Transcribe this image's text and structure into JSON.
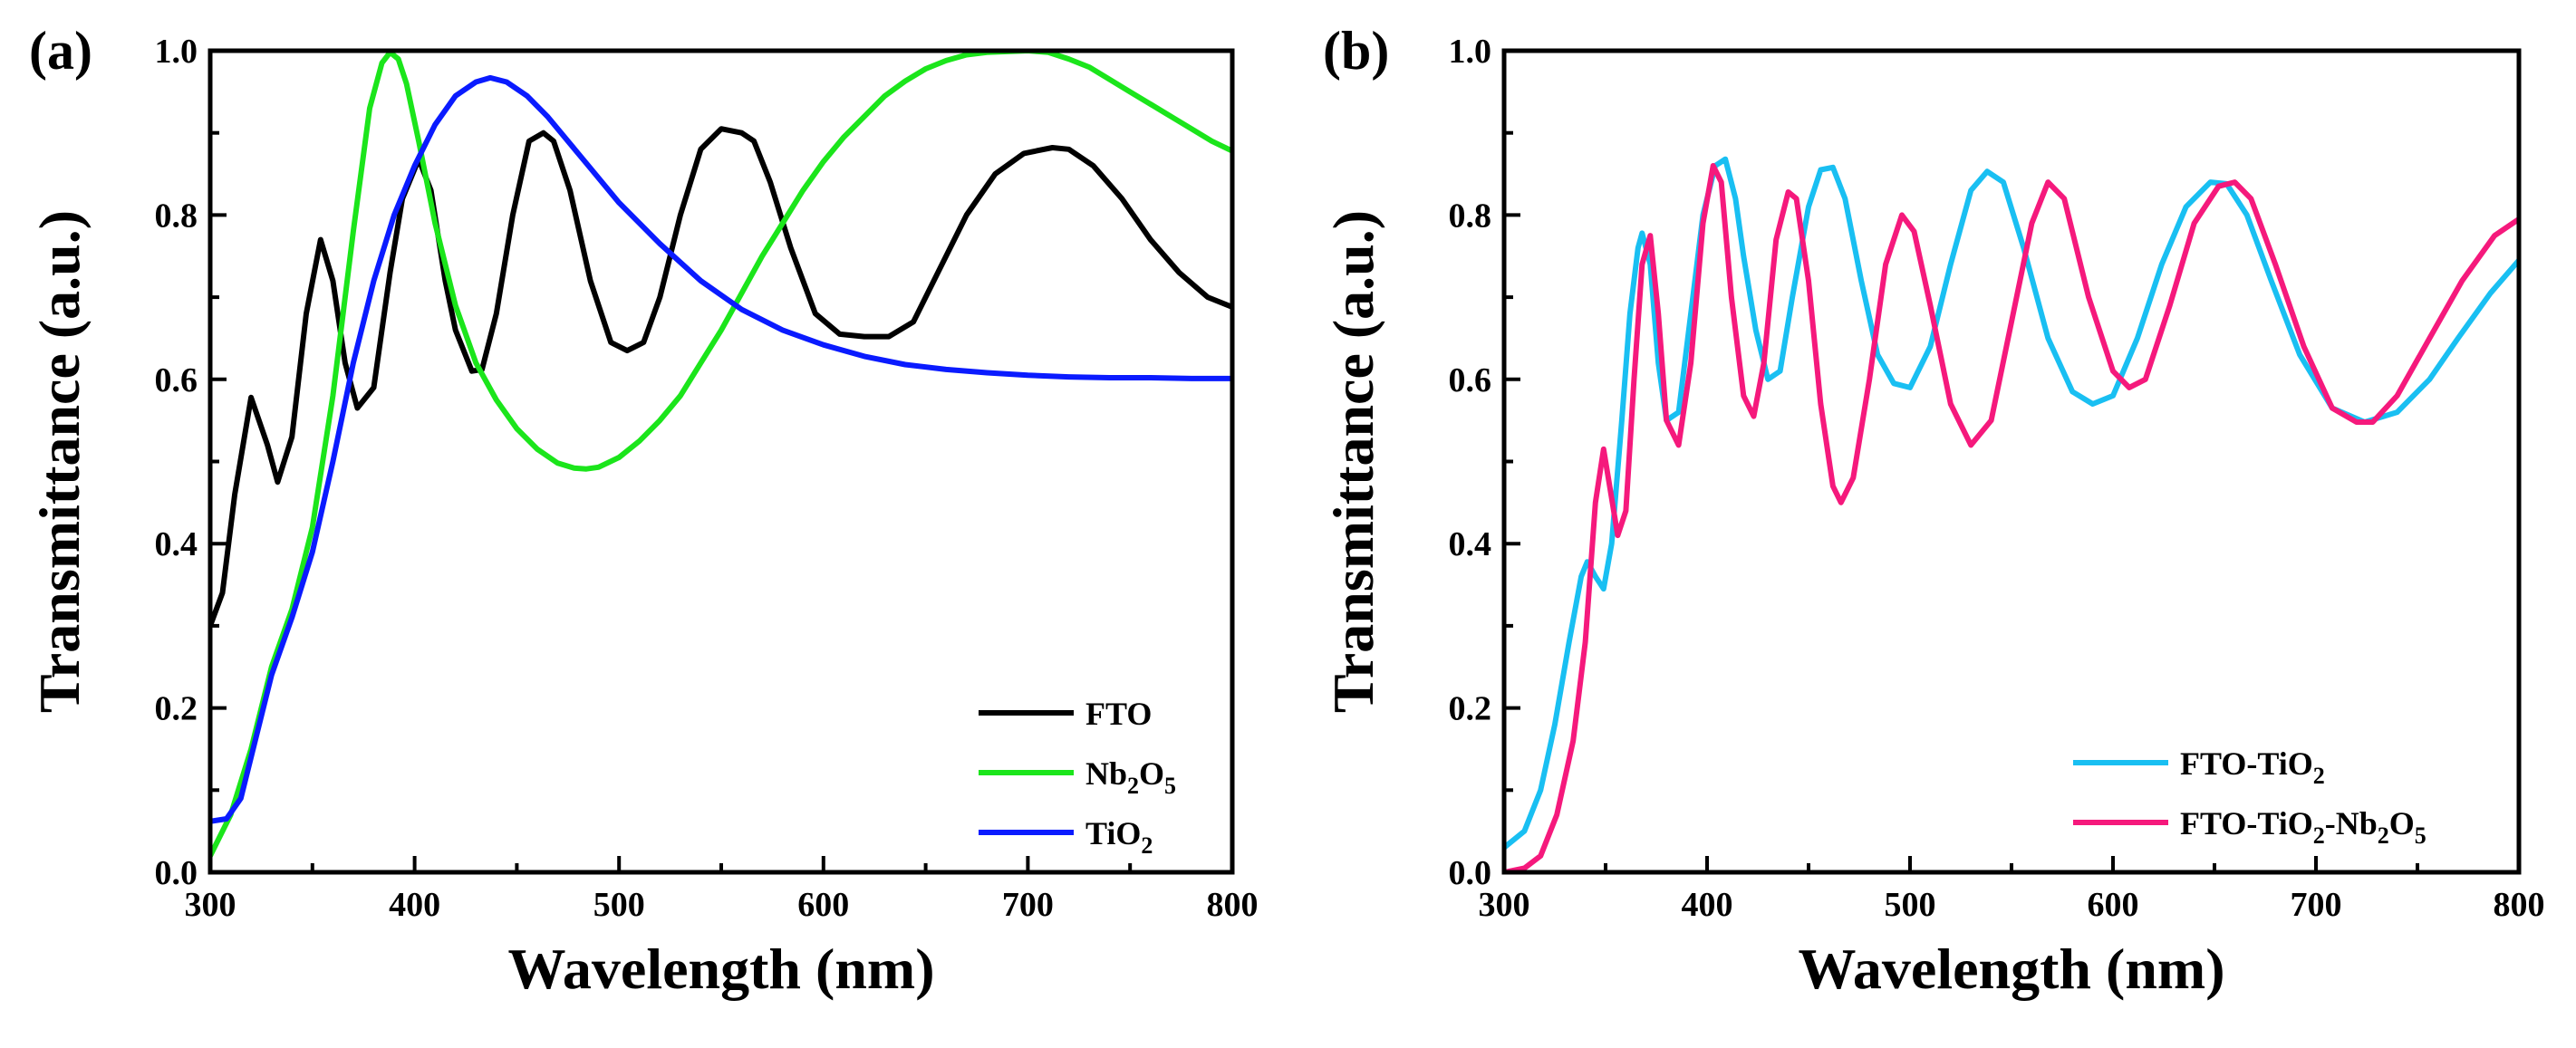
{
  "chart_data": [
    {
      "type": "line",
      "panel_label": "(a)",
      "xlabel": "Wavelength (nm)",
      "ylabel": "Transmittance (a.u.)",
      "xlim": [
        300,
        800
      ],
      "ylim": [
        0,
        1.0
      ],
      "xticks": [
        "300",
        "400",
        "500",
        "600",
        "700",
        "800"
      ],
      "yticks": [
        "0.0",
        "0.2",
        "0.4",
        "0.6",
        "0.8",
        "1.0"
      ],
      "legend_position": "bottom-right",
      "series": [
        {
          "name": "FTO",
          "legend": {
            "base": "FTO",
            "parts": []
          },
          "color": "#000000",
          "x": [
            300,
            306,
            312,
            320,
            328,
            333,
            340,
            347,
            354,
            360,
            366,
            372,
            380,
            388,
            394,
            402,
            408,
            415,
            420,
            428,
            433,
            440,
            448,
            456,
            463,
            468,
            476,
            486,
            496,
            504,
            512,
            520,
            530,
            540,
            550,
            560,
            566,
            574,
            584,
            596,
            608,
            620,
            632,
            644,
            656,
            670,
            684,
            698,
            712,
            720,
            732,
            746,
            760,
            774,
            788,
            800
          ],
          "y": [
            0.3,
            0.34,
            0.46,
            0.578,
            0.52,
            0.475,
            0.53,
            0.68,
            0.77,
            0.72,
            0.62,
            0.565,
            0.59,
            0.73,
            0.82,
            0.868,
            0.83,
            0.72,
            0.66,
            0.61,
            0.612,
            0.68,
            0.8,
            0.89,
            0.9,
            0.89,
            0.83,
            0.72,
            0.645,
            0.635,
            0.645,
            0.7,
            0.8,
            0.88,
            0.905,
            0.9,
            0.89,
            0.84,
            0.76,
            0.68,
            0.655,
            0.652,
            0.652,
            0.67,
            0.73,
            0.8,
            0.85,
            0.875,
            0.882,
            0.88,
            0.86,
            0.82,
            0.77,
            0.73,
            0.7,
            0.688
          ]
        },
        {
          "name": "Nb2O5",
          "legend": {
            "base": "Nb",
            "parts": [
              [
                "2",
                "sub"
              ],
              [
                "O",
                "base"
              ],
              [
                "5",
                "sub"
              ]
            ]
          },
          "color": "#1be51b",
          "x": [
            300,
            310,
            320,
            330,
            340,
            350,
            360,
            370,
            378,
            384,
            388,
            392,
            396,
            402,
            410,
            420,
            430,
            440,
            450,
            460,
            470,
            478,
            484,
            490,
            500,
            510,
            520,
            530,
            540,
            550,
            560,
            570,
            580,
            590,
            600,
            610,
            620,
            630,
            640,
            650,
            660,
            670,
            680,
            690,
            700,
            705,
            710,
            720,
            730,
            740,
            750,
            760,
            770,
            780,
            790,
            800
          ],
          "y": [
            0.02,
            0.07,
            0.15,
            0.25,
            0.32,
            0.42,
            0.58,
            0.78,
            0.93,
            0.985,
            0.998,
            0.99,
            0.96,
            0.89,
            0.79,
            0.69,
            0.62,
            0.575,
            0.54,
            0.515,
            0.498,
            0.492,
            0.491,
            0.493,
            0.505,
            0.525,
            0.55,
            0.58,
            0.62,
            0.66,
            0.705,
            0.75,
            0.79,
            0.83,
            0.865,
            0.895,
            0.92,
            0.945,
            0.963,
            0.978,
            0.988,
            0.995,
            0.998,
            0.999,
            1.0,
            0.999,
            0.998,
            0.99,
            0.98,
            0.965,
            0.95,
            0.935,
            0.92,
            0.905,
            0.89,
            0.878
          ]
        },
        {
          "name": "TiO2",
          "legend": {
            "base": "TiO",
            "parts": [
              [
                "2",
                "sub"
              ]
            ]
          },
          "color": "#0a1bff",
          "x": [
            300,
            308,
            315,
            322,
            330,
            340,
            350,
            360,
            370,
            380,
            390,
            400,
            410,
            420,
            430,
            437,
            445,
            455,
            465,
            475,
            485,
            500,
            520,
            540,
            560,
            580,
            600,
            620,
            640,
            660,
            680,
            700,
            720,
            740,
            760,
            780,
            800
          ],
          "y": [
            0.062,
            0.065,
            0.09,
            0.16,
            0.24,
            0.31,
            0.39,
            0.5,
            0.62,
            0.72,
            0.8,
            0.86,
            0.91,
            0.945,
            0.962,
            0.967,
            0.962,
            0.945,
            0.92,
            0.89,
            0.86,
            0.815,
            0.765,
            0.72,
            0.685,
            0.66,
            0.642,
            0.628,
            0.618,
            0.612,
            0.608,
            0.605,
            0.603,
            0.602,
            0.602,
            0.601,
            0.601
          ]
        }
      ]
    },
    {
      "type": "line",
      "panel_label": "(b)",
      "xlabel": "Wavelength (nm)",
      "ylabel": "Transmittance (a.u.)",
      "xlim": [
        300,
        800
      ],
      "ylim": [
        0,
        1.0
      ],
      "xticks": [
        "300",
        "400",
        "500",
        "600",
        "700",
        "800"
      ],
      "yticks": [
        "0.0",
        "0.2",
        "0.4",
        "0.6",
        "0.8",
        "1.0"
      ],
      "legend_position": "bottom-right",
      "series": [
        {
          "name": "FTO-TiO2",
          "legend": {
            "base": "FTO-TiO",
            "parts": [
              [
                "2",
                "sub"
              ]
            ]
          },
          "color": "#19bff2",
          "x": [
            300,
            310,
            318,
            325,
            332,
            338,
            341,
            345,
            349,
            353,
            358,
            362,
            366,
            368,
            372,
            376,
            380,
            386,
            392,
            398,
            404,
            409,
            414,
            418,
            424,
            430,
            436,
            442,
            450,
            456,
            462,
            468,
            476,
            484,
            492,
            500,
            510,
            520,
            530,
            538,
            546,
            556,
            568,
            580,
            590,
            600,
            612,
            624,
            636,
            648,
            656,
            666,
            678,
            692,
            708,
            724,
            740,
            756,
            770,
            786,
            800
          ],
          "y": [
            0.03,
            0.05,
            0.1,
            0.18,
            0.28,
            0.36,
            0.378,
            0.36,
            0.345,
            0.4,
            0.55,
            0.68,
            0.76,
            0.778,
            0.74,
            0.62,
            0.55,
            0.56,
            0.68,
            0.8,
            0.86,
            0.868,
            0.82,
            0.75,
            0.66,
            0.6,
            0.61,
            0.7,
            0.81,
            0.855,
            0.858,
            0.82,
            0.72,
            0.63,
            0.595,
            0.59,
            0.64,
            0.74,
            0.83,
            0.853,
            0.84,
            0.76,
            0.65,
            0.585,
            0.57,
            0.58,
            0.65,
            0.74,
            0.81,
            0.84,
            0.838,
            0.8,
            0.72,
            0.63,
            0.565,
            0.548,
            0.56,
            0.6,
            0.65,
            0.705,
            0.745
          ]
        },
        {
          "name": "FTO-TiO2-Nb2O5",
          "legend": {
            "base": "FTO-TiO",
            "parts": [
              [
                "2",
                "sub"
              ],
              [
                "-Nb",
                "base"
              ],
              [
                "2",
                "sub"
              ],
              [
                "O",
                "base"
              ],
              [
                "5",
                "sub"
              ]
            ]
          },
          "color": "#f5197c",
          "x": [
            300,
            310,
            318,
            326,
            334,
            340,
            345,
            349,
            352,
            356,
            360,
            364,
            368,
            372,
            376,
            380,
            386,
            392,
            398,
            403,
            407,
            412,
            418,
            423,
            428,
            434,
            440,
            444,
            450,
            456,
            462,
            466,
            472,
            480,
            488,
            496,
            502,
            510,
            520,
            530,
            540,
            550,
            560,
            568,
            576,
            588,
            600,
            608,
            616,
            628,
            640,
            652,
            660,
            668,
            680,
            694,
            708,
            720,
            728,
            740,
            756,
            772,
            788,
            800
          ],
          "y": [
            0.0,
            0.005,
            0.02,
            0.07,
            0.16,
            0.28,
            0.45,
            0.515,
            0.47,
            0.41,
            0.44,
            0.6,
            0.74,
            0.775,
            0.68,
            0.55,
            0.52,
            0.62,
            0.79,
            0.86,
            0.84,
            0.7,
            0.58,
            0.555,
            0.62,
            0.77,
            0.828,
            0.82,
            0.72,
            0.57,
            0.47,
            0.45,
            0.48,
            0.6,
            0.74,
            0.8,
            0.78,
            0.69,
            0.57,
            0.52,
            0.55,
            0.67,
            0.79,
            0.84,
            0.82,
            0.7,
            0.61,
            0.59,
            0.6,
            0.69,
            0.79,
            0.835,
            0.84,
            0.82,
            0.74,
            0.64,
            0.565,
            0.548,
            0.548,
            0.58,
            0.65,
            0.72,
            0.775,
            0.795
          ]
        }
      ]
    }
  ]
}
